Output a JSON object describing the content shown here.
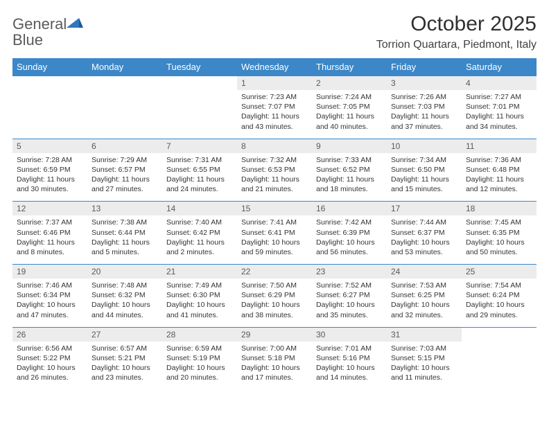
{
  "logo": {
    "text1": "General",
    "text2": "Blue"
  },
  "title": "October 2025",
  "subtitle": "Torrion Quartara, Piedmont, Italy",
  "colors": {
    "headerBg": "#3b87c8",
    "headerText": "#ffffff",
    "dayNumBg": "#ececec",
    "borderTop": "#3b87c8",
    "bodyText": "#333333",
    "logoBlue": "#2f78bd",
    "logoGray": "#5a5a5a"
  },
  "daynames": [
    "Sunday",
    "Monday",
    "Tuesday",
    "Wednesday",
    "Thursday",
    "Friday",
    "Saturday"
  ],
  "weeks": [
    [
      {
        "n": "",
        "sr": "",
        "ss": "",
        "dl": "",
        "empty": true
      },
      {
        "n": "",
        "sr": "",
        "ss": "",
        "dl": "",
        "empty": true
      },
      {
        "n": "",
        "sr": "",
        "ss": "",
        "dl": "",
        "empty": true
      },
      {
        "n": "1",
        "sr": "7:23 AM",
        "ss": "7:07 PM",
        "dl": "11 hours and 43 minutes."
      },
      {
        "n": "2",
        "sr": "7:24 AM",
        "ss": "7:05 PM",
        "dl": "11 hours and 40 minutes."
      },
      {
        "n": "3",
        "sr": "7:26 AM",
        "ss": "7:03 PM",
        "dl": "11 hours and 37 minutes."
      },
      {
        "n": "4",
        "sr": "7:27 AM",
        "ss": "7:01 PM",
        "dl": "11 hours and 34 minutes."
      }
    ],
    [
      {
        "n": "5",
        "sr": "7:28 AM",
        "ss": "6:59 PM",
        "dl": "11 hours and 30 minutes."
      },
      {
        "n": "6",
        "sr": "7:29 AM",
        "ss": "6:57 PM",
        "dl": "11 hours and 27 minutes."
      },
      {
        "n": "7",
        "sr": "7:31 AM",
        "ss": "6:55 PM",
        "dl": "11 hours and 24 minutes."
      },
      {
        "n": "8",
        "sr": "7:32 AM",
        "ss": "6:53 PM",
        "dl": "11 hours and 21 minutes."
      },
      {
        "n": "9",
        "sr": "7:33 AM",
        "ss": "6:52 PM",
        "dl": "11 hours and 18 minutes."
      },
      {
        "n": "10",
        "sr": "7:34 AM",
        "ss": "6:50 PM",
        "dl": "11 hours and 15 minutes."
      },
      {
        "n": "11",
        "sr": "7:36 AM",
        "ss": "6:48 PM",
        "dl": "11 hours and 12 minutes."
      }
    ],
    [
      {
        "n": "12",
        "sr": "7:37 AM",
        "ss": "6:46 PM",
        "dl": "11 hours and 8 minutes."
      },
      {
        "n": "13",
        "sr": "7:38 AM",
        "ss": "6:44 PM",
        "dl": "11 hours and 5 minutes."
      },
      {
        "n": "14",
        "sr": "7:40 AM",
        "ss": "6:42 PM",
        "dl": "11 hours and 2 minutes."
      },
      {
        "n": "15",
        "sr": "7:41 AM",
        "ss": "6:41 PM",
        "dl": "10 hours and 59 minutes."
      },
      {
        "n": "16",
        "sr": "7:42 AM",
        "ss": "6:39 PM",
        "dl": "10 hours and 56 minutes."
      },
      {
        "n": "17",
        "sr": "7:44 AM",
        "ss": "6:37 PM",
        "dl": "10 hours and 53 minutes."
      },
      {
        "n": "18",
        "sr": "7:45 AM",
        "ss": "6:35 PM",
        "dl": "10 hours and 50 minutes."
      }
    ],
    [
      {
        "n": "19",
        "sr": "7:46 AM",
        "ss": "6:34 PM",
        "dl": "10 hours and 47 minutes."
      },
      {
        "n": "20",
        "sr": "7:48 AM",
        "ss": "6:32 PM",
        "dl": "10 hours and 44 minutes."
      },
      {
        "n": "21",
        "sr": "7:49 AM",
        "ss": "6:30 PM",
        "dl": "10 hours and 41 minutes."
      },
      {
        "n": "22",
        "sr": "7:50 AM",
        "ss": "6:29 PM",
        "dl": "10 hours and 38 minutes."
      },
      {
        "n": "23",
        "sr": "7:52 AM",
        "ss": "6:27 PM",
        "dl": "10 hours and 35 minutes."
      },
      {
        "n": "24",
        "sr": "7:53 AM",
        "ss": "6:25 PM",
        "dl": "10 hours and 32 minutes."
      },
      {
        "n": "25",
        "sr": "7:54 AM",
        "ss": "6:24 PM",
        "dl": "10 hours and 29 minutes."
      }
    ],
    [
      {
        "n": "26",
        "sr": "6:56 AM",
        "ss": "5:22 PM",
        "dl": "10 hours and 26 minutes."
      },
      {
        "n": "27",
        "sr": "6:57 AM",
        "ss": "5:21 PM",
        "dl": "10 hours and 23 minutes."
      },
      {
        "n": "28",
        "sr": "6:59 AM",
        "ss": "5:19 PM",
        "dl": "10 hours and 20 minutes."
      },
      {
        "n": "29",
        "sr": "7:00 AM",
        "ss": "5:18 PM",
        "dl": "10 hours and 17 minutes."
      },
      {
        "n": "30",
        "sr": "7:01 AM",
        "ss": "5:16 PM",
        "dl": "10 hours and 14 minutes."
      },
      {
        "n": "31",
        "sr": "7:03 AM",
        "ss": "5:15 PM",
        "dl": "10 hours and 11 minutes."
      },
      {
        "n": "",
        "sr": "",
        "ss": "",
        "dl": "",
        "empty": true
      }
    ]
  ],
  "labels": {
    "sunrise": "Sunrise: ",
    "sunset": "Sunset: ",
    "daylight": "Daylight: "
  }
}
